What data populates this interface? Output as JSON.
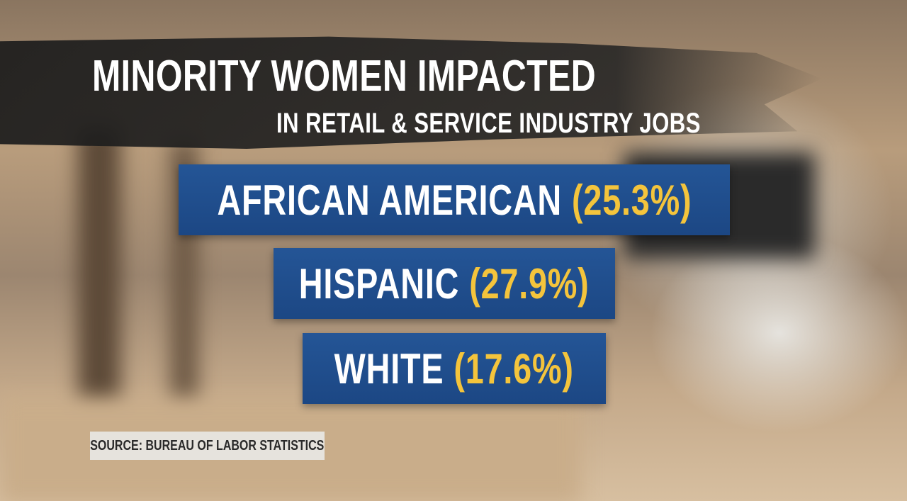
{
  "title": "MINORITY WOMEN IMPACTED",
  "subtitle": "IN RETAIL & SERVICE INDUSTRY JOBS",
  "items": [
    {
      "label": "AFRICAN AMERICAN",
      "value": "(25.3%)"
    },
    {
      "label": "HISPANIC",
      "value": "(27.9%)"
    },
    {
      "label": "WHITE",
      "value": "(17.6%)"
    }
  ],
  "source": "SOURCE: BUREAU OF LABOR STATISTICS"
}
